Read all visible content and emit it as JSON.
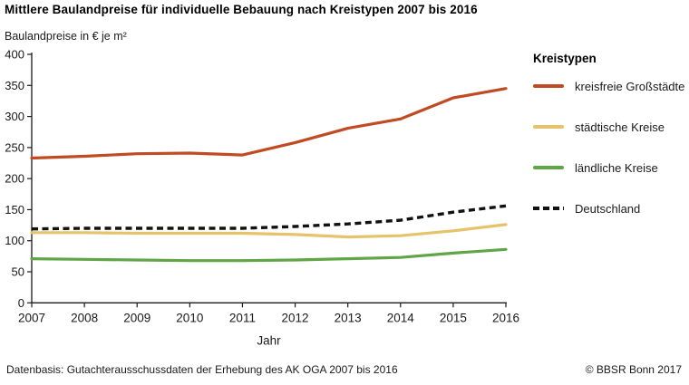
{
  "header": {
    "title": "Mittlere Baulandpreise für individuelle Bebauung nach Kreistypen 2007 bis 2016"
  },
  "chart_data": {
    "type": "line",
    "title": "Mittlere Baulandpreise für individuelle Bebauung nach Kreistypen 2007 bis 2016",
    "unit_label": "Baulandpreise in € je m²",
    "xlabel": "Jahr",
    "ylabel": "Baulandpreise in € je m²",
    "categories": [
      "2007",
      "2008",
      "2009",
      "2010",
      "2011",
      "2012",
      "2013",
      "2014",
      "2015",
      "2016"
    ],
    "series": [
      {
        "id": "kreisfreie-grossstaedte",
        "name": "kreisfreie Großstädte",
        "color": "#c04a21",
        "dash": "solid",
        "values": [
          233,
          236,
          240,
          241,
          238,
          258,
          281,
          296,
          330,
          345
        ]
      },
      {
        "id": "staedtische-kreise",
        "name": "städtische Kreise",
        "color": "#e6c36a",
        "dash": "solid",
        "values": [
          113,
          113,
          112,
          112,
          112,
          110,
          106,
          108,
          116,
          126
        ]
      },
      {
        "id": "laendliche-kreise",
        "name": "ländliche Kreise",
        "color": "#60a546",
        "dash": "solid",
        "values": [
          71,
          70,
          69,
          68,
          68,
          69,
          71,
          73,
          80,
          86
        ]
      },
      {
        "id": "deutschland",
        "name": "Deutschland",
        "color": "#111111",
        "dash": "dashed",
        "values": [
          119,
          120,
          120,
          120,
          120,
          123,
          127,
          133,
          146,
          156
        ]
      }
    ],
    "ylim": [
      0,
      400
    ],
    "ytick_step": 50,
    "grid": false,
    "legend_title": "Kreistypen",
    "legend_position": "right"
  },
  "footer": {
    "source": "Datenbasis: Gutachterausschussdaten der Erhebung des AK OGA 2007 bis 2016",
    "copyright": "© BBSR Bonn 2017"
  }
}
